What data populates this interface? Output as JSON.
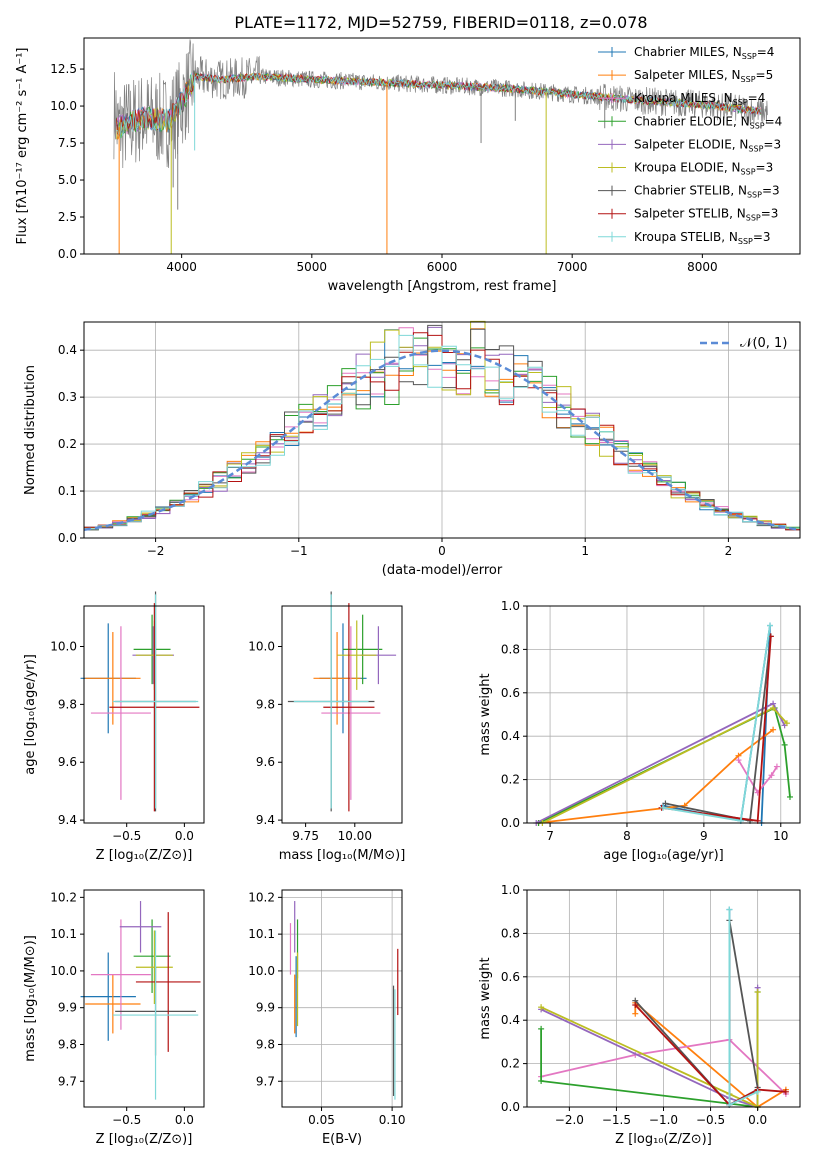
{
  "figure_title": "PLATE=1172, MJD=52759, FIBERID=0118, z=0.078",
  "colors": {
    "chabrier_miles": "#1f77b4",
    "salpeter_miles": "#ff7f0e",
    "kroupa_miles": "#e377c2",
    "chabrier_elodie": "#2ca02c",
    "salpeter_elodie": "#9467bd",
    "kroupa_elodie": "#bcbd22",
    "chabrier_stelib": "#555555",
    "salpeter_stelib": "#b31212",
    "kroupa_stelib": "#7fd8d8",
    "spectrum": "#808080",
    "normal_curve": "#5b8bd6",
    "grid": "#b0b0b0"
  },
  "chart_data": [
    {
      "id": "spectrum",
      "type": "line",
      "title": "PLATE=1172, MJD=52759, FIBERID=0118, z=0.078",
      "xlabel": "wavelength [Angstrom, rest frame]",
      "ylabel": "Flux [fλ10⁻¹⁷ erg cm⁻² s⁻¹ A⁻¹]",
      "xlim": [
        3250,
        8750
      ],
      "ylim": [
        0,
        14.6
      ],
      "xticks": [
        4000,
        5000,
        6000,
        7000,
        8000
      ],
      "yticks": [
        0.0,
        2.5,
        5.0,
        7.5,
        10.0,
        12.5
      ],
      "ytick_labels": [
        "0.0",
        "2.5",
        "5.0",
        "7.5",
        "10.0",
        "12.5"
      ],
      "grid": false,
      "legend_position": "right",
      "legend": [
        {
          "label": "Chabrier MILES, N",
          "sub": "SSP",
          "suffix": "=4",
          "color": "#1f77b4"
        },
        {
          "label": "Salpeter MILES, N",
          "sub": "SSP",
          "suffix": "=5",
          "color": "#ff7f0e"
        },
        {
          "label": "Kroupa MILES, N",
          "sub": "SSP",
          "suffix": "=4",
          "color": "#e377c2"
        },
        {
          "label": "Chabrier ELODIE, N",
          "sub": "SSP",
          "suffix": "=4",
          "color": "#2ca02c"
        },
        {
          "label": "Salpeter ELODIE, N",
          "sub": "SSP",
          "suffix": "=3",
          "color": "#9467bd"
        },
        {
          "label": "Kroupa ELODIE, N",
          "sub": "SSP",
          "suffix": "=3",
          "color": "#bcbd22"
        },
        {
          "label": "Chabrier STELIB, N",
          "sub": "SSP",
          "suffix": "=3",
          "color": "#555555"
        },
        {
          "label": "Salpeter STELIB, N",
          "sub": "SSP",
          "suffix": "=3",
          "color": "#b31212"
        },
        {
          "label": "Kroupa STELIB, N",
          "sub": "SSP",
          "suffix": "=3",
          "color": "#7fd8d8"
        }
      ],
      "continuum": [
        {
          "x": 3500,
          "y": 8.5
        },
        {
          "x": 3700,
          "y": 9.2
        },
        {
          "x": 3900,
          "y": 9.0
        },
        {
          "x": 4000,
          "y": 10.2
        },
        {
          "x": 4100,
          "y": 12.0
        },
        {
          "x": 4300,
          "y": 11.8
        },
        {
          "x": 4600,
          "y": 12.0
        },
        {
          "x": 5000,
          "y": 11.8
        },
        {
          "x": 5500,
          "y": 11.6
        },
        {
          "x": 6000,
          "y": 11.4
        },
        {
          "x": 6500,
          "y": 11.2
        },
        {
          "x": 7000,
          "y": 10.8
        },
        {
          "x": 7500,
          "y": 10.4
        },
        {
          "x": 8000,
          "y": 10.1
        },
        {
          "x": 8500,
          "y": 9.6
        }
      ],
      "spikes": [
        {
          "x": 3520,
          "y": 0.0,
          "color": "#ff7f0e"
        },
        {
          "x": 3920,
          "y": 0.0,
          "color": "#bcbd22"
        },
        {
          "x": 3935,
          "y": 4.5,
          "color": "#808080"
        },
        {
          "x": 3970,
          "y": 3.0,
          "color": "#808080"
        },
        {
          "x": 4100,
          "y": 7.0,
          "color": "#7fd8d8"
        },
        {
          "x": 5577,
          "y": 0.0,
          "color": "#ff7f0e"
        },
        {
          "x": 6300,
          "y": 7.5,
          "color": "#808080"
        },
        {
          "x": 6563,
          "y": 9.0,
          "color": "#808080"
        },
        {
          "x": 6800,
          "y": 0.0,
          "color": "#bcbd22"
        },
        {
          "x": 7250,
          "y": 8.5,
          "color": "#808080"
        }
      ]
    },
    {
      "id": "residuals",
      "type": "line",
      "xlabel": "(data-model)/error",
      "ylabel": "Normed distribution",
      "xlim": [
        -2.5,
        2.5
      ],
      "ylim": [
        0,
        0.46
      ],
      "xticks": [
        -2,
        -1,
        0,
        1,
        2
      ],
      "xtick_labels": [
        "−2",
        "−1",
        "0",
        "1",
        "2"
      ],
      "yticks": [
        0.0,
        0.1,
        0.2,
        0.3,
        0.4
      ],
      "ytick_labels": [
        "0.0",
        "0.1",
        "0.2",
        "0.3",
        "0.4"
      ],
      "grid": true,
      "legend_position": "top-right",
      "normal_label": "𝒩(0, 1)",
      "bin_width": 0.1
    },
    {
      "id": "age_vs_Z",
      "type": "scatter",
      "xlabel": "Z [log₁₀(Z/Z⊙)]",
      "ylabel": "age  [log₁₀(age/yr)]",
      "xlim": [
        -0.87,
        0.17
      ],
      "ylim": [
        9.39,
        10.14
      ],
      "xticks": [
        -0.5,
        0.0
      ],
      "xtick_labels": [
        "−0.5",
        "0.0"
      ],
      "yticks": [
        9.4,
        9.6,
        9.8,
        10.0
      ],
      "ytick_labels": [
        "9.4",
        "9.6",
        "9.8",
        "10.0"
      ],
      "grid": false,
      "points": [
        {
          "x": -0.66,
          "y": 9.89,
          "xerr": 0.24,
          "yerr": 0.19,
          "color": "#1f77b4"
        },
        {
          "x": -0.62,
          "y": 9.89,
          "xerr": 0.24,
          "yerr": 0.16,
          "color": "#ff7f0e"
        },
        {
          "x": -0.55,
          "y": 9.77,
          "xerr": 0.26,
          "yerr": 0.3,
          "color": "#e377c2"
        },
        {
          "x": -0.28,
          "y": 9.99,
          "xerr": 0.16,
          "yerr": 0.12,
          "color": "#2ca02c"
        },
        {
          "x": -0.27,
          "y": 9.97,
          "xerr": 0.18,
          "yerr": 0.1,
          "color": "#9467bd"
        },
        {
          "x": -0.26,
          "y": 9.97,
          "xerr": 0.16,
          "yerr": 0.12,
          "color": "#bcbd22"
        },
        {
          "x": -0.25,
          "y": 9.81,
          "xerr": 0.35,
          "yerr": 0.38,
          "color": "#555555"
        },
        {
          "x": -0.26,
          "y": 9.79,
          "xerr": 0.39,
          "yerr": 0.36,
          "color": "#b31212"
        },
        {
          "x": -0.25,
          "y": 9.81,
          "xerr": 0.37,
          "yerr": 0.37,
          "color": "#7fd8d8"
        }
      ]
    },
    {
      "id": "age_vs_mass",
      "type": "scatter",
      "xlabel": "mass [log₁₀(M/M⊙)]",
      "xlim": [
        9.63,
        10.24
      ],
      "ylim": [
        9.39,
        10.14
      ],
      "xticks": [
        9.75,
        10.0
      ],
      "xtick_labels": [
        "9.75",
        "10.00"
      ],
      "yticks": [
        9.4,
        9.6,
        9.8,
        10.0
      ],
      "ytick_labels": [
        "9.4",
        "9.6",
        "9.8",
        "10.0"
      ],
      "grid": false,
      "points": [
        {
          "x": 9.94,
          "y": 9.89,
          "xerr": 0.12,
          "yerr": 0.19,
          "color": "#1f77b4"
        },
        {
          "x": 9.91,
          "y": 9.89,
          "xerr": 0.12,
          "yerr": 0.16,
          "color": "#ff7f0e"
        },
        {
          "x": 9.98,
          "y": 9.77,
          "xerr": 0.15,
          "yerr": 0.3,
          "color": "#e377c2"
        },
        {
          "x": 10.04,
          "y": 9.99,
          "xerr": 0.1,
          "yerr": 0.12,
          "color": "#2ca02c"
        },
        {
          "x": 10.12,
          "y": 9.97,
          "xerr": 0.09,
          "yerr": 0.1,
          "color": "#9467bd"
        },
        {
          "x": 10.01,
          "y": 9.97,
          "xerr": 0.1,
          "yerr": 0.12,
          "color": "#bcbd22"
        },
        {
          "x": 9.88,
          "y": 9.81,
          "xerr": 0.22,
          "yerr": 0.38,
          "color": "#555555"
        },
        {
          "x": 9.97,
          "y": 9.79,
          "xerr": 0.13,
          "yerr": 0.36,
          "color": "#b31212"
        },
        {
          "x": 9.88,
          "y": 9.81,
          "xerr": 0.19,
          "yerr": 0.37,
          "color": "#7fd8d8"
        }
      ]
    },
    {
      "id": "weight_vs_age",
      "type": "line",
      "xlabel": "age  [log₁₀(age/yr)]",
      "ylabel": "mass weight",
      "xlim": [
        6.7,
        10.25
      ],
      "ylim": [
        0,
        1.0
      ],
      "xticks": [
        7,
        8,
        9,
        10
      ],
      "xtick_labels": [
        "7",
        "8",
        "9",
        "10"
      ],
      "yticks": [
        0.0,
        0.2,
        0.4,
        0.6,
        0.8,
        1.0
      ],
      "ytick_labels": [
        "0.0",
        "0.2",
        "0.4",
        "0.6",
        "0.8",
        "1.0"
      ],
      "grid": true,
      "series": [
        {
          "color": "#1f77b4",
          "x": [
            8.47,
            9.48,
            9.86,
            9.75
          ],
          "y": [
            0.08,
            0.01,
            0.91,
            0.0
          ]
        },
        {
          "color": "#ff7f0e",
          "x": [
            6.85,
            8.75,
            9.45,
            9.9
          ],
          "y": [
            0.0,
            0.08,
            0.31,
            0.43
          ]
        },
        {
          "color": "#e377c2",
          "x": [
            9.45,
            9.7,
            9.88,
            9.95
          ],
          "y": [
            0.29,
            0.14,
            0.22,
            0.26
          ]
        },
        {
          "color": "#2ca02c",
          "x": [
            6.85,
            9.92,
            10.05,
            10.12
          ],
          "y": [
            0.0,
            0.53,
            0.36,
            0.12
          ]
        },
        {
          "color": "#9467bd",
          "x": [
            6.82,
            9.9,
            10.05
          ],
          "y": [
            0.0,
            0.55,
            0.45
          ]
        },
        {
          "color": "#bcbd22",
          "x": [
            6.9,
            9.9,
            10.08
          ],
          "y": [
            0.0,
            0.53,
            0.46
          ]
        },
        {
          "color": "#555555",
          "x": [
            8.5,
            9.6,
            9.87
          ],
          "y": [
            0.09,
            0.01,
            0.86
          ]
        },
        {
          "color": "#b31212",
          "x": [
            8.45,
            9.7,
            9.87
          ],
          "y": [
            0.07,
            0.01,
            0.86
          ]
        },
        {
          "color": "#7fd8d8",
          "x": [
            8.47,
            9.48,
            9.86
          ],
          "y": [
            0.07,
            0.01,
            0.91
          ]
        }
      ]
    },
    {
      "id": "mass_vs_Z",
      "type": "scatter",
      "xlabel": "Z [log₁₀(Z/Z⊙)]",
      "ylabel": "mass [log₁₀(M/M⊙)]",
      "xlim": [
        -0.87,
        0.17
      ],
      "ylim": [
        9.63,
        10.22
      ],
      "xticks": [
        -0.5,
        0.0
      ],
      "xtick_labels": [
        "−0.5",
        "0.0"
      ],
      "yticks": [
        9.7,
        9.8,
        9.9,
        10.0,
        10.1,
        10.2
      ],
      "ytick_labels": [
        "9.7",
        "9.8",
        "9.9",
        "10.0",
        "10.1",
        "10.2"
      ],
      "grid": false,
      "points": [
        {
          "x": -0.66,
          "y": 9.93,
          "xerr": 0.24,
          "yerr": 0.12,
          "color": "#1f77b4"
        },
        {
          "x": -0.62,
          "y": 9.91,
          "xerr": 0.24,
          "yerr": 0.08,
          "color": "#ff7f0e"
        },
        {
          "x": -0.55,
          "y": 9.99,
          "xerr": 0.26,
          "yerr": 0.15,
          "color": "#e377c2"
        },
        {
          "x": -0.28,
          "y": 10.04,
          "xerr": 0.16,
          "yerr": 0.1,
          "color": "#2ca02c"
        },
        {
          "x": -0.38,
          "y": 10.12,
          "xerr": 0.18,
          "yerr": 0.07,
          "color": "#9467bd"
        },
        {
          "x": -0.26,
          "y": 10.01,
          "xerr": 0.16,
          "yerr": 0.1,
          "color": "#bcbd22"
        },
        {
          "x": -0.25,
          "y": 9.89,
          "xerr": 0.35,
          "yerr": 0.12,
          "color": "#555555"
        },
        {
          "x": -0.14,
          "y": 9.97,
          "xerr": 0.28,
          "yerr": 0.19,
          "color": "#b31212"
        },
        {
          "x": -0.25,
          "y": 9.88,
          "xerr": 0.37,
          "yerr": 0.23,
          "color": "#7fd8d8"
        }
      ]
    },
    {
      "id": "mass_vs_ebv",
      "type": "scatter",
      "xlabel": "E(B-V)",
      "xlim": [
        0.022,
        0.107
      ],
      "ylim": [
        9.63,
        10.22
      ],
      "xticks": [
        0.05,
        0.1
      ],
      "xtick_labels": [
        "0.05",
        "0.10"
      ],
      "yticks": [
        9.7,
        9.8,
        9.9,
        10.0,
        10.1,
        10.2
      ],
      "ytick_labels": [
        "9.7",
        "9.8",
        "9.9",
        "10.0",
        "10.1",
        "10.2"
      ],
      "grid": true,
      "points": [
        {
          "x": 0.032,
          "y": 9.93,
          "yerr": 0.11,
          "color": "#1f77b4"
        },
        {
          "x": 0.031,
          "y": 9.91,
          "yerr": 0.08,
          "color": "#ff7f0e"
        },
        {
          "x": 0.028,
          "y": 10.06,
          "yerr": 0.07,
          "color": "#e377c2"
        },
        {
          "x": 0.033,
          "y": 10.06,
          "yerr": 0.08,
          "color": "#2ca02c"
        },
        {
          "x": 0.031,
          "y": 10.12,
          "yerr": 0.07,
          "color": "#9467bd"
        },
        {
          "x": 0.033,
          "y": 9.95,
          "yerr": 0.1,
          "color": "#bcbd22"
        },
        {
          "x": 0.101,
          "y": 9.81,
          "yerr": 0.15,
          "color": "#555555"
        },
        {
          "x": 0.104,
          "y": 9.97,
          "yerr": 0.09,
          "color": "#b31212"
        },
        {
          "x": 0.102,
          "y": 9.8,
          "yerr": 0.15,
          "color": "#7fd8d8"
        }
      ]
    },
    {
      "id": "weight_vs_Z",
      "type": "line",
      "xlabel": "Z [log₁₀(Z/Z⊙)]",
      "ylabel": "mass weight",
      "xlim": [
        -2.45,
        0.45
      ],
      "ylim": [
        0,
        1.0
      ],
      "xticks": [
        -2.0,
        -1.5,
        -1.0,
        -0.5,
        0.0
      ],
      "xtick_labels": [
        "−2.0",
        "−1.5",
        "−1.0",
        "−0.5",
        "0.0"
      ],
      "yticks": [
        0.0,
        0.2,
        0.4,
        0.6,
        0.8,
        1.0
      ],
      "ytick_labels": [
        "0.0",
        "0.2",
        "0.4",
        "0.6",
        "0.8",
        "1.0"
      ],
      "grid": true,
      "series": [
        {
          "color": "#1f77b4",
          "x": [
            -0.3,
            -0.3,
            0.0,
            0.0
          ],
          "y": [
            0.91,
            0.01,
            0.08,
            0.0
          ]
        },
        {
          "color": "#ff7f0e",
          "x": [
            -1.3,
            -1.3,
            0.0,
            0.3
          ],
          "y": [
            0.43,
            0.48,
            0.0,
            0.08
          ]
        },
        {
          "color": "#e377c2",
          "x": [
            -2.3,
            -1.3,
            -0.3,
            0.3
          ],
          "y": [
            0.14,
            0.24,
            0.31,
            0.06
          ]
        },
        {
          "color": "#2ca02c",
          "x": [
            -2.3,
            -2.3,
            0.0,
            0.0
          ],
          "y": [
            0.36,
            0.12,
            0.0,
            0.53
          ]
        },
        {
          "color": "#9467bd",
          "x": [
            -2.3,
            -0.3,
            0.0,
            0.0
          ],
          "y": [
            0.45,
            0.04,
            0.0,
            0.55
          ]
        },
        {
          "color": "#bcbd22",
          "x": [
            -2.3,
            -0.3,
            0.0,
            0.0
          ],
          "y": [
            0.46,
            0.06,
            0.0,
            0.53
          ]
        },
        {
          "color": "#555555",
          "x": [
            -1.3,
            -0.3,
            -0.3,
            0.0
          ],
          "y": [
            0.49,
            0.01,
            0.86,
            0.09
          ]
        },
        {
          "color": "#b31212",
          "x": [
            -1.3,
            -0.3,
            0.0,
            0.3
          ],
          "y": [
            0.47,
            0.01,
            0.08,
            0.07
          ]
        },
        {
          "color": "#7fd8d8",
          "x": [
            -0.3,
            -0.3,
            0.0
          ],
          "y": [
            0.91,
            0.01,
            0.07
          ]
        }
      ]
    }
  ]
}
